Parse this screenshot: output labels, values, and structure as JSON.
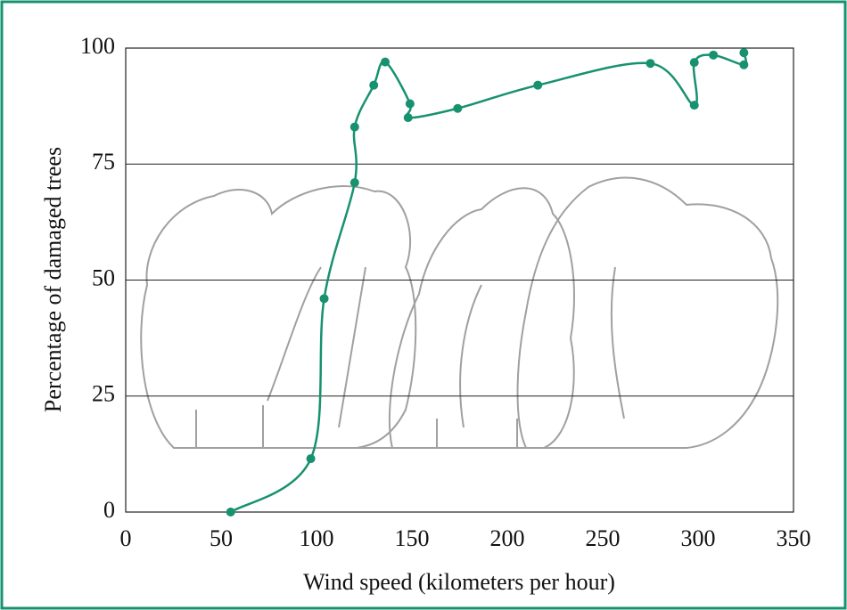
{
  "chart_data": {
    "type": "line",
    "x_label": "Wind speed (kilometers per hour)",
    "y_label": "Percentage of damaged trees",
    "color": "#17916f",
    "x": [
      55,
      97,
      104,
      120,
      120,
      130,
      136,
      149,
      148,
      174,
      216,
      275,
      298,
      298,
      308,
      324,
      324
    ],
    "values": [
      0,
      11.5,
      46,
      71,
      83,
      92,
      97,
      88,
      85,
      87,
      92,
      96.7,
      87.7,
      96.9,
      98.5,
      96.4,
      99
    ],
    "xlim": [
      0,
      350
    ],
    "xticks": [
      0,
      50,
      100,
      150,
      200,
      250,
      300,
      350
    ],
    "ylim": [
      0,
      100
    ],
    "yticks": [
      0,
      25,
      50,
      75,
      100
    ],
    "grid": true
  }
}
